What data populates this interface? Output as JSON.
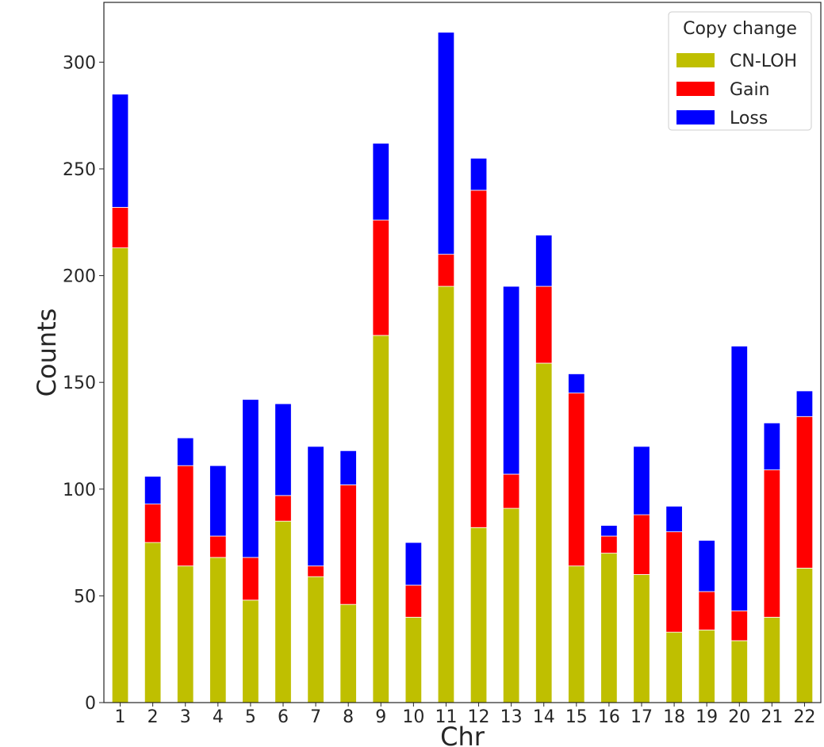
{
  "chart_data": {
    "type": "bar",
    "stacked": true,
    "title": "",
    "xlabel": "Chr",
    "ylabel": "Counts",
    "ylim": [
      0,
      328
    ],
    "yticks": [
      0,
      50,
      100,
      150,
      200,
      250,
      300
    ],
    "grid": false,
    "legend_title": "Copy change",
    "legend_position": "top-right",
    "categories": [
      "1",
      "2",
      "3",
      "4",
      "5",
      "6",
      "7",
      "8",
      "9",
      "10",
      "11",
      "12",
      "13",
      "14",
      "15",
      "16",
      "17",
      "18",
      "19",
      "20",
      "21",
      "22"
    ],
    "series": [
      {
        "name": "CN-LOH",
        "color": "#bfbf00",
        "values": [
          213,
          75,
          64,
          68,
          48,
          85,
          59,
          46,
          172,
          40,
          195,
          82,
          91,
          159,
          64,
          70,
          60,
          33,
          34,
          29,
          40,
          63
        ]
      },
      {
        "name": "Gain",
        "color": "#ff0000",
        "values": [
          19,
          18,
          47,
          10,
          20,
          12,
          5,
          56,
          54,
          15,
          15,
          158,
          16,
          36,
          81,
          8,
          28,
          47,
          18,
          14,
          69,
          71
        ]
      },
      {
        "name": "Loss",
        "color": "#0000ff",
        "values": [
          53,
          13,
          13,
          33,
          74,
          43,
          56,
          16,
          36,
          20,
          104,
          15,
          88,
          24,
          9,
          5,
          32,
          12,
          24,
          124,
          22,
          12
        ]
      }
    ]
  }
}
